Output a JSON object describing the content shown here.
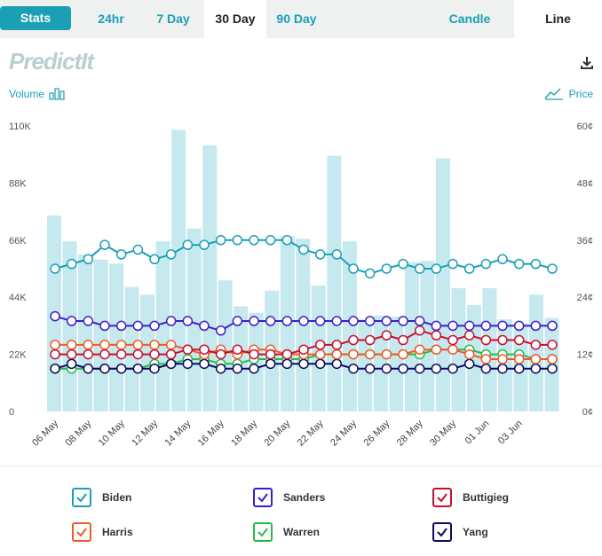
{
  "tabs": {
    "stats": "Stats",
    "h24": "24hr",
    "d7": "7 Day",
    "d30": "30 Day",
    "d90": "90 Day",
    "candle": "Candle",
    "line": "Line"
  },
  "logo": "PredictIt",
  "labels": {
    "volume": "Volume",
    "price": "Price"
  },
  "colors": {
    "accent": "#1a9fb5",
    "volume_bar": "#c5e9ef",
    "biden": "#1a9fb5",
    "sanders": "#3d1fc6",
    "buttigieg": "#c8102e",
    "harris": "#f05a28",
    "warren": "#2cb84a",
    "yang": "#0b0b5e"
  },
  "icons": [
    "download-icon",
    "bar-chart-icon",
    "line-chart-icon",
    "check-icon"
  ],
  "chart_data": {
    "type": "line",
    "left_axis": {
      "ticks": [
        "110K",
        "88K",
        "66K",
        "44K",
        "22K",
        "0"
      ],
      "range": [
        0,
        110000
      ]
    },
    "right_axis": {
      "ticks": [
        "60¢",
        "48¢",
        "36¢",
        "24¢",
        "12¢",
        "0¢"
      ],
      "range": [
        0,
        60
      ]
    },
    "x_tick_labels": [
      "06 May",
      "08 May",
      "10 May",
      "12 May",
      "14 May",
      "16 May",
      "18 May",
      "20 May",
      "22 May",
      "24 May",
      "26 May",
      "28 May",
      "30 May",
      "01 Jun",
      "03 Jun"
    ],
    "volume": [
      75500,
      65500,
      60500,
      58500,
      57000,
      48000,
      45000,
      65500,
      108500,
      70500,
      102500,
      50500,
      40500,
      38000,
      46500,
      67500,
      66500,
      48500,
      98500,
      65500,
      35500,
      37000,
      36500,
      57500,
      58000,
      97500,
      47500,
      41000,
      47500,
      35500,
      34000,
      45000,
      36000
    ],
    "series": [
      {
        "name": "Biden",
        "values": [
          30,
          31,
          32,
          35,
          33,
          34,
          32,
          33,
          35,
          35,
          36,
          36,
          36,
          36,
          36,
          34,
          33,
          33,
          30,
          29,
          30,
          31,
          30,
          30,
          31,
          30,
          31,
          32,
          31,
          31,
          30
        ]
      },
      {
        "name": "Sanders",
        "values": [
          20,
          19,
          19,
          18,
          18,
          18,
          18,
          19,
          19,
          18,
          17,
          19,
          19,
          19,
          19,
          19,
          19,
          19,
          19,
          19,
          19,
          19,
          19,
          18,
          18,
          18,
          18,
          18,
          18,
          18,
          18
        ]
      },
      {
        "name": "Buttigieg",
        "values": [
          12,
          12,
          12,
          12,
          12,
          12,
          12,
          12,
          13,
          13,
          12,
          13,
          12,
          12,
          12,
          13,
          14,
          14,
          15,
          15,
          16,
          15,
          17,
          16,
          15,
          16,
          15,
          15,
          15,
          14,
          14
        ]
      },
      {
        "name": "Harris",
        "values": [
          14,
          14,
          14,
          14,
          14,
          14,
          14,
          14,
          13,
          12,
          13,
          12,
          13,
          13,
          12,
          12,
          12,
          12,
          12,
          12,
          12,
          12,
          13,
          13,
          13,
          12,
          11,
          11,
          11,
          11,
          11
        ]
      },
      {
        "name": "Warren",
        "values": [
          9,
          9,
          9,
          9,
          9,
          9,
          10,
          10,
          11,
          11,
          10,
          10,
          11,
          11,
          11,
          11,
          12,
          12,
          12,
          12,
          12,
          12,
          12,
          13,
          13,
          13,
          12,
          12,
          12,
          11,
          11
        ]
      },
      {
        "name": "Yang",
        "values": [
          9,
          10,
          9,
          9,
          9,
          9,
          9,
          10,
          10,
          10,
          9,
          9,
          9,
          10,
          10,
          10,
          10,
          10,
          9,
          9,
          9,
          9,
          9,
          9,
          9,
          10,
          9,
          9,
          9,
          9,
          9
        ]
      }
    ]
  }
}
